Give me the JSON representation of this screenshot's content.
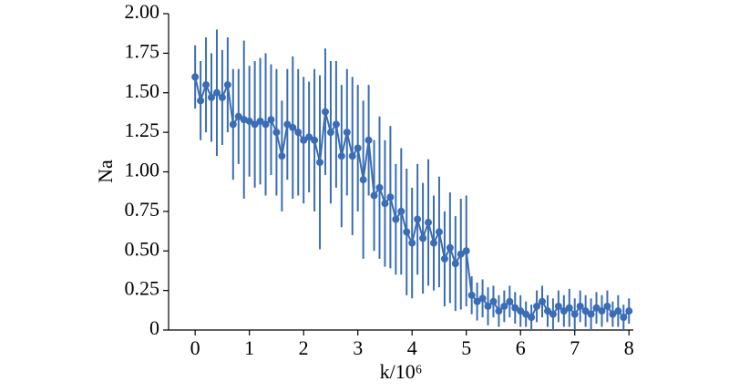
{
  "chart_data": {
    "type": "errorbar",
    "ylabel": "Na",
    "xlabel": "k/10⁶",
    "x": [
      0,
      0.1,
      0.2,
      0.3,
      0.4,
      0.5,
      0.6,
      0.7,
      0.8,
      0.9,
      1.0,
      1.1,
      1.2,
      1.3,
      1.4,
      1.5,
      1.6,
      1.7,
      1.8,
      1.9,
      2.0,
      2.1,
      2.2,
      2.3,
      2.4,
      2.5,
      2.6,
      2.7,
      2.8,
      2.9,
      3.0,
      3.1,
      3.2,
      3.3,
      3.4,
      3.5,
      3.6,
      3.7,
      3.8,
      3.9,
      4.0,
      4.1,
      4.2,
      4.3,
      4.4,
      4.5,
      4.6,
      4.7,
      4.8,
      4.9,
      5.0,
      5.1,
      5.2,
      5.3,
      5.4,
      5.5,
      5.6,
      5.7,
      5.8,
      5.9,
      6.0,
      6.1,
      6.2,
      6.3,
      6.4,
      6.5,
      6.6,
      6.7,
      6.8,
      6.9,
      7.0,
      7.1,
      7.2,
      7.3,
      7.4,
      7.5,
      7.6,
      7.7,
      7.8,
      7.9,
      8.0
    ],
    "series": [
      {
        "color": "#3a6db5",
        "values": [
          1.6,
          1.45,
          1.55,
          1.47,
          1.5,
          1.47,
          1.55,
          1.3,
          1.35,
          1.33,
          1.32,
          1.3,
          1.32,
          1.3,
          1.33,
          1.25,
          1.1,
          1.3,
          1.28,
          1.25,
          1.2,
          1.22,
          1.2,
          1.06,
          1.38,
          1.25,
          1.3,
          1.1,
          1.25,
          1.1,
          1.15,
          0.95,
          1.2,
          0.85,
          0.9,
          0.8,
          0.84,
          0.7,
          0.75,
          0.62,
          0.55,
          0.7,
          0.58,
          0.68,
          0.55,
          0.62,
          0.45,
          0.52,
          0.42,
          0.48,
          0.5,
          0.22,
          0.18,
          0.2,
          0.15,
          0.18,
          0.12,
          0.15,
          0.18,
          0.14,
          0.12,
          0.1,
          0.08,
          0.15,
          0.18,
          0.12,
          0.1,
          0.15,
          0.12,
          0.14,
          0.1,
          0.15,
          0.12,
          0.1,
          0.14,
          0.12,
          0.15,
          0.1,
          0.12,
          0.08,
          0.12
        ],
        "errors": [
          0.2,
          0.25,
          0.3,
          0.28,
          0.4,
          0.3,
          0.3,
          0.35,
          0.3,
          0.5,
          0.35,
          0.4,
          0.4,
          0.45,
          0.35,
          0.4,
          0.35,
          0.35,
          0.45,
          0.4,
          0.4,
          0.35,
          0.45,
          0.55,
          0.4,
          0.45,
          0.4,
          0.45,
          0.4,
          0.5,
          0.4,
          0.5,
          0.35,
          0.35,
          0.45,
          0.4,
          0.45,
          0.35,
          0.4,
          0.4,
          0.35,
          0.35,
          0.35,
          0.4,
          0.3,
          0.35,
          0.3,
          0.35,
          0.3,
          0.35,
          0.35,
          0.12,
          0.12,
          0.12,
          0.12,
          0.1,
          0.1,
          0.1,
          0.1,
          0.1,
          0.1,
          0.08,
          0.08,
          0.1,
          0.1,
          0.1,
          0.1,
          0.1,
          0.1,
          0.12,
          0.1,
          0.1,
          0.1,
          0.1,
          0.1,
          0.1,
          0.1,
          0.08,
          0.1,
          0.08,
          0.08
        ]
      }
    ],
    "xlim": [
      -0.49,
      8.08
    ],
    "ylim": [
      0,
      2
    ],
    "xticks": [
      0,
      1,
      2,
      3,
      4,
      5,
      6,
      7,
      8
    ],
    "yticks": [
      0,
      0.25,
      {
        "value": 0.5,
        "label": "0.50"
      },
      0.75,
      {
        "value": 1,
        "label": "1.00"
      },
      1.25,
      {
        "value": 1.5,
        "label": "1.50"
      },
      1.75,
      {
        "value": 2,
        "label": "2.00"
      }
    ]
  }
}
